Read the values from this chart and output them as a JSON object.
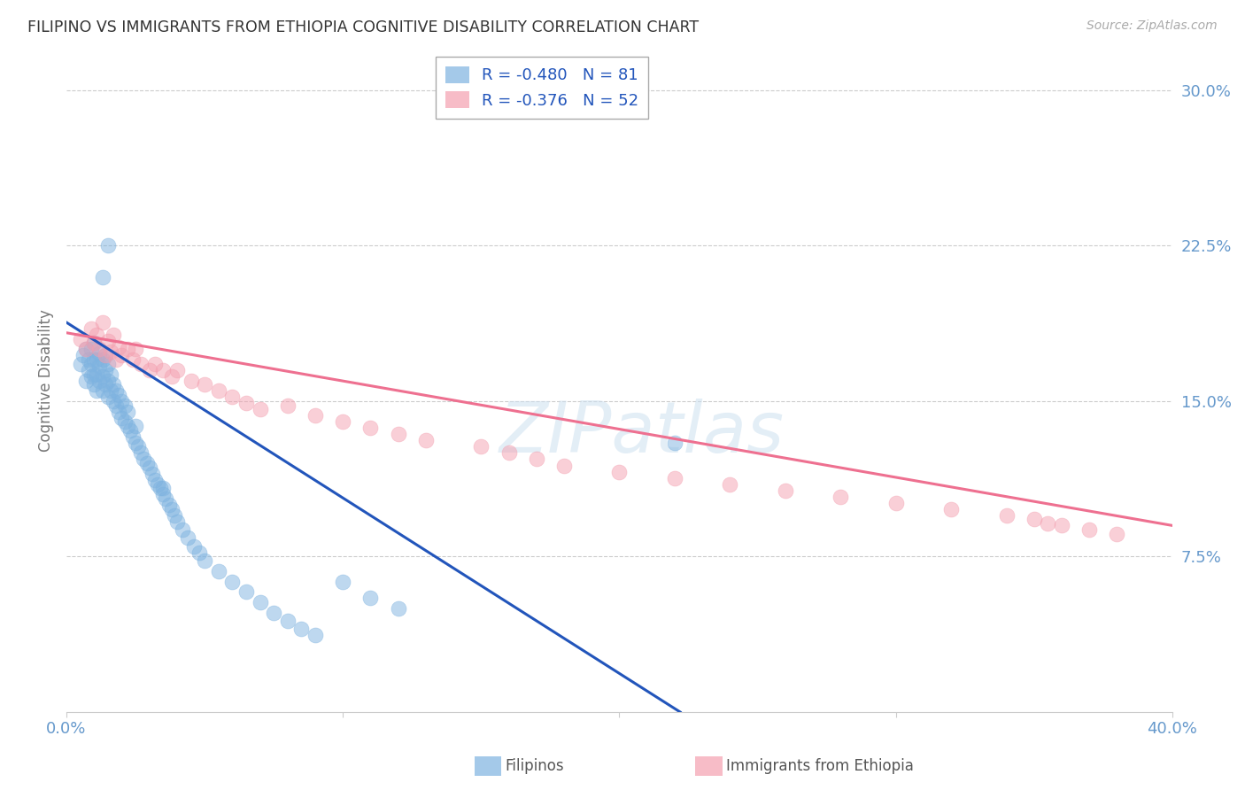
{
  "title": "FILIPINO VS IMMIGRANTS FROM ETHIOPIA COGNITIVE DISABILITY CORRELATION CHART",
  "source": "Source: ZipAtlas.com",
  "ylabel": "Cognitive Disability",
  "ytick_labels": [
    "7.5%",
    "15.0%",
    "22.5%",
    "30.0%"
  ],
  "ytick_values": [
    0.075,
    0.15,
    0.225,
    0.3
  ],
  "xtick_values": [
    0.0,
    0.1,
    0.2,
    0.3,
    0.4
  ],
  "xlim": [
    0.0,
    0.4
  ],
  "ylim": [
    0.0,
    0.32
  ],
  "legend_r1": "R = -0.480",
  "legend_n1": "N = 81",
  "legend_r2": "R = -0.376",
  "legend_n2": "N = 52",
  "color_filipino": "#7EB3E0",
  "color_ethiopia": "#F4A0B0",
  "color_trendline_filipino": "#2255BB",
  "color_trendline_ethiopia": "#EE7090",
  "color_axis_labels": "#6699CC",
  "color_title": "#333333",
  "filipinos_x": [
    0.005,
    0.006,
    0.007,
    0.007,
    0.008,
    0.008,
    0.009,
    0.009,
    0.009,
    0.01,
    0.01,
    0.01,
    0.01,
    0.011,
    0.011,
    0.011,
    0.012,
    0.012,
    0.012,
    0.013,
    0.013,
    0.013,
    0.014,
    0.014,
    0.014,
    0.015,
    0.015,
    0.015,
    0.016,
    0.016,
    0.017,
    0.017,
    0.018,
    0.018,
    0.019,
    0.019,
    0.02,
    0.02,
    0.021,
    0.021,
    0.022,
    0.022,
    0.023,
    0.024,
    0.025,
    0.025,
    0.026,
    0.027,
    0.028,
    0.029,
    0.03,
    0.031,
    0.032,
    0.033,
    0.034,
    0.035,
    0.036,
    0.037,
    0.038,
    0.039,
    0.04,
    0.042,
    0.044,
    0.046,
    0.048,
    0.05,
    0.055,
    0.06,
    0.065,
    0.07,
    0.075,
    0.08,
    0.085,
    0.09,
    0.1,
    0.11,
    0.12,
    0.035,
    0.013,
    0.015,
    0.22
  ],
  "filipinos_y": [
    0.168,
    0.172,
    0.16,
    0.175,
    0.165,
    0.17,
    0.162,
    0.168,
    0.175,
    0.158,
    0.163,
    0.17,
    0.178,
    0.155,
    0.163,
    0.17,
    0.16,
    0.167,
    0.173,
    0.155,
    0.162,
    0.17,
    0.158,
    0.165,
    0.172,
    0.152,
    0.16,
    0.168,
    0.155,
    0.163,
    0.15,
    0.158,
    0.148,
    0.155,
    0.145,
    0.153,
    0.142,
    0.15,
    0.14,
    0.148,
    0.138,
    0.145,
    0.136,
    0.133,
    0.13,
    0.138,
    0.128,
    0.125,
    0.122,
    0.12,
    0.118,
    0.115,
    0.112,
    0.11,
    0.108,
    0.105,
    0.103,
    0.1,
    0.098,
    0.095,
    0.092,
    0.088,
    0.084,
    0.08,
    0.077,
    0.073,
    0.068,
    0.063,
    0.058,
    0.053,
    0.048,
    0.044,
    0.04,
    0.037,
    0.063,
    0.055,
    0.05,
    0.108,
    0.21,
    0.225,
    0.13
  ],
  "ethiopia_x": [
    0.005,
    0.007,
    0.009,
    0.01,
    0.011,
    0.012,
    0.013,
    0.014,
    0.015,
    0.016,
    0.017,
    0.018,
    0.019,
    0.02,
    0.022,
    0.024,
    0.025,
    0.027,
    0.03,
    0.032,
    0.035,
    0.038,
    0.04,
    0.045,
    0.05,
    0.055,
    0.06,
    0.065,
    0.07,
    0.08,
    0.09,
    0.1,
    0.11,
    0.12,
    0.13,
    0.15,
    0.16,
    0.17,
    0.18,
    0.2,
    0.22,
    0.24,
    0.26,
    0.28,
    0.3,
    0.32,
    0.34,
    0.35,
    0.355,
    0.36,
    0.37,
    0.38
  ],
  "ethiopia_y": [
    0.18,
    0.175,
    0.185,
    0.178,
    0.182,
    0.175,
    0.188,
    0.172,
    0.179,
    0.174,
    0.182,
    0.17,
    0.176,
    0.172,
    0.175,
    0.17,
    0.175,
    0.168,
    0.165,
    0.168,
    0.165,
    0.162,
    0.165,
    0.16,
    0.158,
    0.155,
    0.152,
    0.149,
    0.146,
    0.148,
    0.143,
    0.14,
    0.137,
    0.134,
    0.131,
    0.128,
    0.125,
    0.122,
    0.119,
    0.116,
    0.113,
    0.11,
    0.107,
    0.104,
    0.101,
    0.098,
    0.095,
    0.093,
    0.091,
    0.09,
    0.088,
    0.086
  ],
  "trend_filipino_x_start": 0.0,
  "trend_filipino_y_start": 0.188,
  "trend_filipino_x_end": 0.222,
  "trend_filipino_y_end": 0.0,
  "trend_ethiopia_x_start": 0.0,
  "trend_ethiopia_y_start": 0.183,
  "trend_ethiopia_x_end": 0.4,
  "trend_ethiopia_y_end": 0.09
}
